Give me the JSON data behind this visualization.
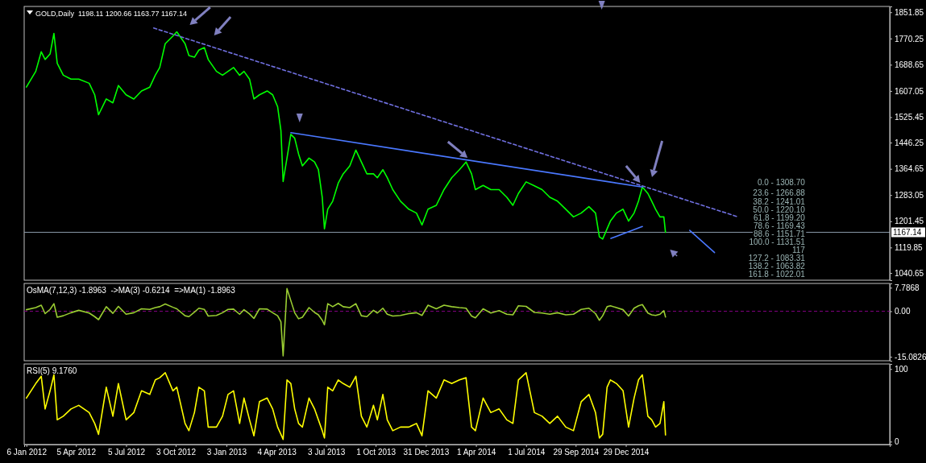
{
  "chart_data": [
    {
      "type": "line",
      "title": "GOLD,Daily  1198.11 1200.66 1163.77 1167.14",
      "tick_labels": "y",
      "x": [
        "2012-01-06",
        "2012-01-23",
        "2012-02-02",
        "2012-02-09",
        "2012-02-18",
        "2012-02-25",
        "2012-03-02",
        "2012-03-13",
        "2012-03-27",
        "2012-04-10",
        "2012-04-29",
        "2012-05-09",
        "2012-05-16",
        "2012-05-30",
        "2012-06-11",
        "2012-06-21",
        "2012-07-05",
        "2012-07-19",
        "2012-08-02",
        "2012-08-17",
        "2012-08-27",
        "2012-09-04",
        "2012-09-14",
        "2012-09-28",
        "2012-10-05",
        "2012-10-20",
        "2012-10-27",
        "2012-11-06",
        "2012-11-14",
        "2012-11-24",
        "2012-12-01",
        "2012-12-16",
        "2012-12-27",
        "2013-01-06",
        "2013-01-16",
        "2013-01-27",
        "2013-02-04",
        "2013-02-14",
        "2013-02-22",
        "2013-03-04",
        "2013-03-18",
        "2013-03-28",
        "2013-04-06",
        "2013-04-12",
        "2013-04-16",
        "2013-04-23",
        "2013-04-30",
        "2013-05-07",
        "2013-05-14",
        "2013-05-21",
        "2013-06-02",
        "2013-06-12",
        "2013-06-19",
        "2013-06-26",
        "2013-06-30",
        "2013-07-06",
        "2013-07-15",
        "2013-07-25",
        "2013-08-03",
        "2013-08-15",
        "2013-08-26",
        "2013-09-05",
        "2013-09-15",
        "2013-09-27",
        "2013-10-04",
        "2013-10-14",
        "2013-10-22",
        "2013-11-01",
        "2013-11-15",
        "2013-11-30",
        "2013-12-14",
        "2013-12-24",
        "2014-01-04",
        "2014-01-19",
        "2014-02-02",
        "2014-02-16",
        "2014-03-02",
        "2014-03-14",
        "2014-03-24",
        "2014-03-31",
        "2014-04-14",
        "2014-04-28",
        "2014-05-13",
        "2014-05-27",
        "2014-06-07",
        "2014-06-17",
        "2014-07-01",
        "2014-07-16",
        "2014-07-30",
        "2014-08-13",
        "2014-08-27",
        "2014-09-11",
        "2014-09-25",
        "2014-10-09",
        "2014-10-23",
        "2014-11-04",
        "2014-11-11",
        "2014-11-17",
        "2014-11-25",
        "2014-12-01",
        "2014-12-12",
        "2014-12-24",
        "2015-01-03",
        "2015-01-13",
        "2015-01-21",
        "2015-01-28",
        "2015-02-07",
        "2015-02-14",
        "2015-02-21",
        "2015-03-01",
        "2015-03-08",
        "2015-03-11"
      ],
      "xlim": [
        "2012-01-02",
        "2016-04-21"
      ],
      "ylim": [
        1018,
        1870
      ],
      "yticks": [
        1851.85,
        1770.25,
        1688.65,
        1607.05,
        1525.45,
        1446.25,
        1364.65,
        1283.05,
        1201.45,
        1119.85,
        1040.65
      ],
      "series": [
        {
          "color": "#00ff00",
          "values": [
            1619,
            1668,
            1729,
            1705,
            1722,
            1786,
            1693,
            1656,
            1644,
            1644,
            1631,
            1595,
            1533,
            1582,
            1570,
            1624,
            1595,
            1582,
            1607,
            1619,
            1656,
            1680,
            1754,
            1778,
            1791,
            1754,
            1717,
            1712,
            1734,
            1742,
            1705,
            1668,
            1656,
            1668,
            1680,
            1656,
            1668,
            1644,
            1582,
            1595,
            1607,
            1595,
            1558,
            1484,
            1325,
            1398,
            1472,
            1460,
            1411,
            1374,
            1398,
            1386,
            1362,
            1276,
            1178,
            1239,
            1264,
            1320,
            1349,
            1374,
            1423,
            1386,
            1349,
            1349,
            1337,
            1362,
            1337,
            1300,
            1264,
            1239,
            1227,
            1190,
            1239,
            1251,
            1300,
            1337,
            1362,
            1386,
            1349,
            1300,
            1313,
            1300,
            1300,
            1276,
            1251,
            1288,
            1324,
            1312,
            1300,
            1276,
            1264,
            1239,
            1215,
            1227,
            1247,
            1227,
            1153,
            1146,
            1178,
            1202,
            1227,
            1239,
            1202,
            1227,
            1264,
            1308,
            1288,
            1264,
            1239,
            1215,
            1215,
            1167
          ]
        },
        {
          "type": "line",
          "color": "#7070e0",
          "line_style": "dashed",
          "x": [
            "2012-08-24",
            "2015-07-21"
          ],
          "values": [
            1803,
            1215
          ]
        },
        {
          "type": "line",
          "color": "#4a78ff",
          "x": [
            "2013-04-30",
            "2015-01-28"
          ],
          "values": [
            1477,
            1308
          ]
        },
        {
          "type": "line",
          "color": "#4a78ff",
          "x": [
            "2014-12-02",
            "2015-01-28"
          ],
          "values": [
            1148,
            1185
          ]
        },
        {
          "type": "line",
          "color": "#4a78ff",
          "x": [
            "2015-04-24",
            "2015-06-08"
          ],
          "values": [
            1173,
            1104
          ]
        }
      ],
      "ref_lines": [
        {
          "axis": "y",
          "value": 1167.14,
          "label": "1167.14",
          "color": "#8898a8"
        }
      ],
      "annotations": [
        "0.0 - 1308.70",
        "23.6 - 1266.88",
        "38.2 - 1241.01",
        "50.0 - 1220.10",
        "61.8 - 1199.20",
        "78.6 - 1169.43",
        "88.6 - 1151.71",
        "100.0 - 1131.51",
        "117",
        "127.2 - 1083.31",
        "138.2 - 1063.82",
        "161.8 - 1022.01"
      ]
    },
    {
      "type": "line",
      "title": "OsMA(7,12,3) -1.8963  ->MA(3) -0.6214  =>MA(1) -1.8963",
      "tick_labels": "y",
      "x": [
        "2012-01-06",
        "2012-01-23",
        "2012-02-02",
        "2012-02-09",
        "2012-02-18",
        "2012-02-25",
        "2012-03-02",
        "2012-03-13",
        "2012-03-27",
        "2012-04-10",
        "2012-04-29",
        "2012-05-09",
        "2012-05-16",
        "2012-05-30",
        "2012-06-11",
        "2012-06-21",
        "2012-07-05",
        "2012-07-19",
        "2012-08-02",
        "2012-08-17",
        "2012-08-27",
        "2012-09-04",
        "2012-09-14",
        "2012-09-28",
        "2012-10-05",
        "2012-10-20",
        "2012-10-27",
        "2012-11-06",
        "2012-11-14",
        "2012-11-24",
        "2012-12-01",
        "2012-12-16",
        "2012-12-27",
        "2013-01-06",
        "2013-01-16",
        "2013-01-27",
        "2013-02-04",
        "2013-02-14",
        "2013-02-22",
        "2013-03-04",
        "2013-03-18",
        "2013-03-28",
        "2013-04-06",
        "2013-04-12",
        "2013-04-16",
        "2013-04-23",
        "2013-04-30",
        "2013-05-07",
        "2013-05-14",
        "2013-05-21",
        "2013-06-02",
        "2013-06-12",
        "2013-06-19",
        "2013-06-26",
        "2013-06-30",
        "2013-07-06",
        "2013-07-15",
        "2013-07-25",
        "2013-08-03",
        "2013-08-15",
        "2013-08-26",
        "2013-09-05",
        "2013-09-15",
        "2013-09-27",
        "2013-10-04",
        "2013-10-14",
        "2013-10-22",
        "2013-11-01",
        "2013-11-15",
        "2013-11-30",
        "2013-12-14",
        "2013-12-24",
        "2014-01-04",
        "2014-01-19",
        "2014-02-02",
        "2014-02-16",
        "2014-03-02",
        "2014-03-14",
        "2014-03-24",
        "2014-03-31",
        "2014-04-14",
        "2014-04-28",
        "2014-05-13",
        "2014-05-27",
        "2014-06-07",
        "2014-06-17",
        "2014-07-01",
        "2014-07-16",
        "2014-07-30",
        "2014-08-13",
        "2014-08-27",
        "2014-09-11",
        "2014-09-25",
        "2014-10-09",
        "2014-10-23",
        "2014-11-04",
        "2014-11-11",
        "2014-11-17",
        "2014-11-25",
        "2014-12-01",
        "2014-12-12",
        "2014-12-24",
        "2015-01-03",
        "2015-01-13",
        "2015-01-21",
        "2015-01-28",
        "2015-02-07",
        "2015-02-14",
        "2015-02-21",
        "2015-03-01",
        "2015-03-08",
        "2015-03-11"
      ],
      "xlim": [
        "2012-01-02",
        "2016-04-21"
      ],
      "ylim": [
        -16.4,
        9.2
      ],
      "yticks": [
        7.7868,
        {
          "value": 0,
          "label": "0.00"
        },
        -15.0826
      ],
      "series": [
        {
          "color": "#9acd32",
          "values": [
            0.5,
            1.2,
            2.0,
            -0.8,
            0.6,
            2.5,
            -2.0,
            -1.5,
            -0.5,
            0.3,
            -0.6,
            -1.8,
            -2.8,
            1.5,
            -0.7,
            1.6,
            -1.0,
            -0.5,
            0.8,
            0.6,
            1.2,
            1.5,
            2.4,
            1.3,
            0.8,
            -1.5,
            -1.8,
            -0.3,
            1.0,
            0.6,
            -1.6,
            -1.4,
            -0.5,
            0.6,
            0.7,
            -1.0,
            0.5,
            -0.9,
            -2.4,
            0.8,
            0.7,
            -0.5,
            -1.5,
            -3.5,
            -14.8,
            7.5,
            3.5,
            -0.5,
            -2.5,
            -2.0,
            1.2,
            -0.4,
            -1.2,
            -3.0,
            -4.5,
            2.5,
            1.5,
            2.6,
            1.5,
            1.2,
            2.5,
            -1.5,
            -1.8,
            0.3,
            -0.6,
            1.0,
            -1.0,
            -1.6,
            -1.4,
            -0.8,
            -0.5,
            -1.4,
            2.0,
            0.8,
            2.0,
            1.5,
            1.2,
            1.0,
            -1.6,
            -2.2,
            0.8,
            -0.6,
            0.2,
            -1.0,
            -1.2,
            1.8,
            1.6,
            -0.4,
            -0.6,
            -1.0,
            -0.5,
            -1.2,
            -1.0,
            0.6,
            1.0,
            -0.8,
            -3.0,
            -1.5,
            1.5,
            1.8,
            1.2,
            0.5,
            -1.6,
            1.0,
            1.8,
            2.2,
            -0.6,
            -1.2,
            -1.4,
            -1.0,
            0.2,
            -1.9
          ]
        }
      ],
      "ref_lines": [
        {
          "axis": "y",
          "value": 0,
          "color": "#800080",
          "line_style": "dashed"
        }
      ]
    },
    {
      "type": "line",
      "title": "RSI(5) 9.1760",
      "x": [
        "2012-01-06",
        "2012-01-23",
        "2012-02-02",
        "2012-02-09",
        "2012-02-18",
        "2012-02-25",
        "2012-03-02",
        "2012-03-13",
        "2012-03-27",
        "2012-04-10",
        "2012-04-29",
        "2012-05-09",
        "2012-05-16",
        "2012-05-30",
        "2012-06-11",
        "2012-06-21",
        "2012-07-05",
        "2012-07-19",
        "2012-08-02",
        "2012-08-17",
        "2012-08-27",
        "2012-09-04",
        "2012-09-14",
        "2012-09-28",
        "2012-10-05",
        "2012-10-20",
        "2012-10-27",
        "2012-11-06",
        "2012-11-14",
        "2012-11-24",
        "2012-12-01",
        "2012-12-16",
        "2012-12-27",
        "2013-01-06",
        "2013-01-16",
        "2013-01-27",
        "2013-02-04",
        "2013-02-14",
        "2013-02-22",
        "2013-03-04",
        "2013-03-18",
        "2013-03-28",
        "2013-04-06",
        "2013-04-12",
        "2013-04-16",
        "2013-04-23",
        "2013-04-30",
        "2013-05-07",
        "2013-05-14",
        "2013-05-21",
        "2013-06-02",
        "2013-06-12",
        "2013-06-19",
        "2013-06-26",
        "2013-06-30",
        "2013-07-06",
        "2013-07-15",
        "2013-07-25",
        "2013-08-03",
        "2013-08-15",
        "2013-08-26",
        "2013-09-05",
        "2013-09-15",
        "2013-09-27",
        "2013-10-04",
        "2013-10-14",
        "2013-10-22",
        "2013-11-01",
        "2013-11-15",
        "2013-11-30",
        "2013-12-14",
        "2013-12-24",
        "2014-01-04",
        "2014-01-19",
        "2014-02-02",
        "2014-02-16",
        "2014-03-02",
        "2014-03-14",
        "2014-03-24",
        "2014-03-31",
        "2014-04-14",
        "2014-04-28",
        "2014-05-13",
        "2014-05-27",
        "2014-06-07",
        "2014-06-17",
        "2014-07-01",
        "2014-07-16",
        "2014-07-30",
        "2014-08-13",
        "2014-08-27",
        "2014-09-11",
        "2014-09-25",
        "2014-10-09",
        "2014-10-23",
        "2014-11-04",
        "2014-11-11",
        "2014-11-17",
        "2014-11-25",
        "2014-12-01",
        "2014-12-12",
        "2014-12-24",
        "2015-01-03",
        "2015-01-13",
        "2015-01-21",
        "2015-01-28",
        "2015-02-07",
        "2015-02-14",
        "2015-02-21",
        "2015-03-01",
        "2015-03-08",
        "2015-03-11"
      ],
      "xlim": [
        "2012-01-02",
        "2016-04-21"
      ],
      "xticks": [
        {
          "value": "2012-01-06",
          "label": "6 Jan 2012"
        },
        {
          "value": "2012-04-05",
          "label": "5 Apr 2012"
        },
        {
          "value": "2012-07-05",
          "label": "5 Jul 2012"
        },
        {
          "value": "2012-10-03",
          "label": "3 Oct 2012"
        },
        {
          "value": "2013-01-03",
          "label": "3 Jan 2013"
        },
        {
          "value": "2013-04-04",
          "label": "4 Apr 2013"
        },
        {
          "value": "2013-07-03",
          "label": "3 Jul 2013"
        },
        {
          "value": "2013-10-01",
          "label": "1 Oct 2013"
        },
        {
          "value": "2013-12-31",
          "label": "31 Dec 2013"
        },
        {
          "value": "2014-04-01",
          "label": "1 Apr 2014"
        },
        {
          "value": "2014-07-01",
          "label": "1 Jul 2014"
        },
        {
          "value": "2014-09-29",
          "label": "29 Sep 2014"
        },
        {
          "value": "2014-12-29",
          "label": "29 Dec 2014"
        }
      ],
      "ylim": [
        -4,
        107
      ],
      "yticks": [
        100,
        0
      ],
      "series": [
        {
          "color": "#ffff00",
          "values": [
            60,
            80,
            90,
            45,
            70,
            92,
            30,
            35,
            45,
            50,
            40,
            25,
            10,
            75,
            35,
            80,
            30,
            40,
            70,
            65,
            85,
            88,
            95,
            70,
            75,
            25,
            15,
            40,
            75,
            70,
            20,
            20,
            35,
            65,
            70,
            25,
            60,
            30,
            8,
            55,
            60,
            45,
            20,
            10,
            3,
            85,
            80,
            45,
            25,
            20,
            60,
            45,
            30,
            15,
            5,
            75,
            70,
            85,
            80,
            75,
            90,
            35,
            20,
            50,
            30,
            65,
            30,
            15,
            20,
            20,
            25,
            8,
            70,
            60,
            85,
            80,
            85,
            88,
            20,
            15,
            60,
            40,
            45,
            30,
            25,
            85,
            95,
            40,
            35,
            25,
            35,
            20,
            15,
            55,
            65,
            40,
            5,
            10,
            75,
            85,
            80,
            70,
            20,
            60,
            85,
            92,
            35,
            30,
            20,
            25,
            55,
            9
          ]
        }
      ]
    }
  ]
}
